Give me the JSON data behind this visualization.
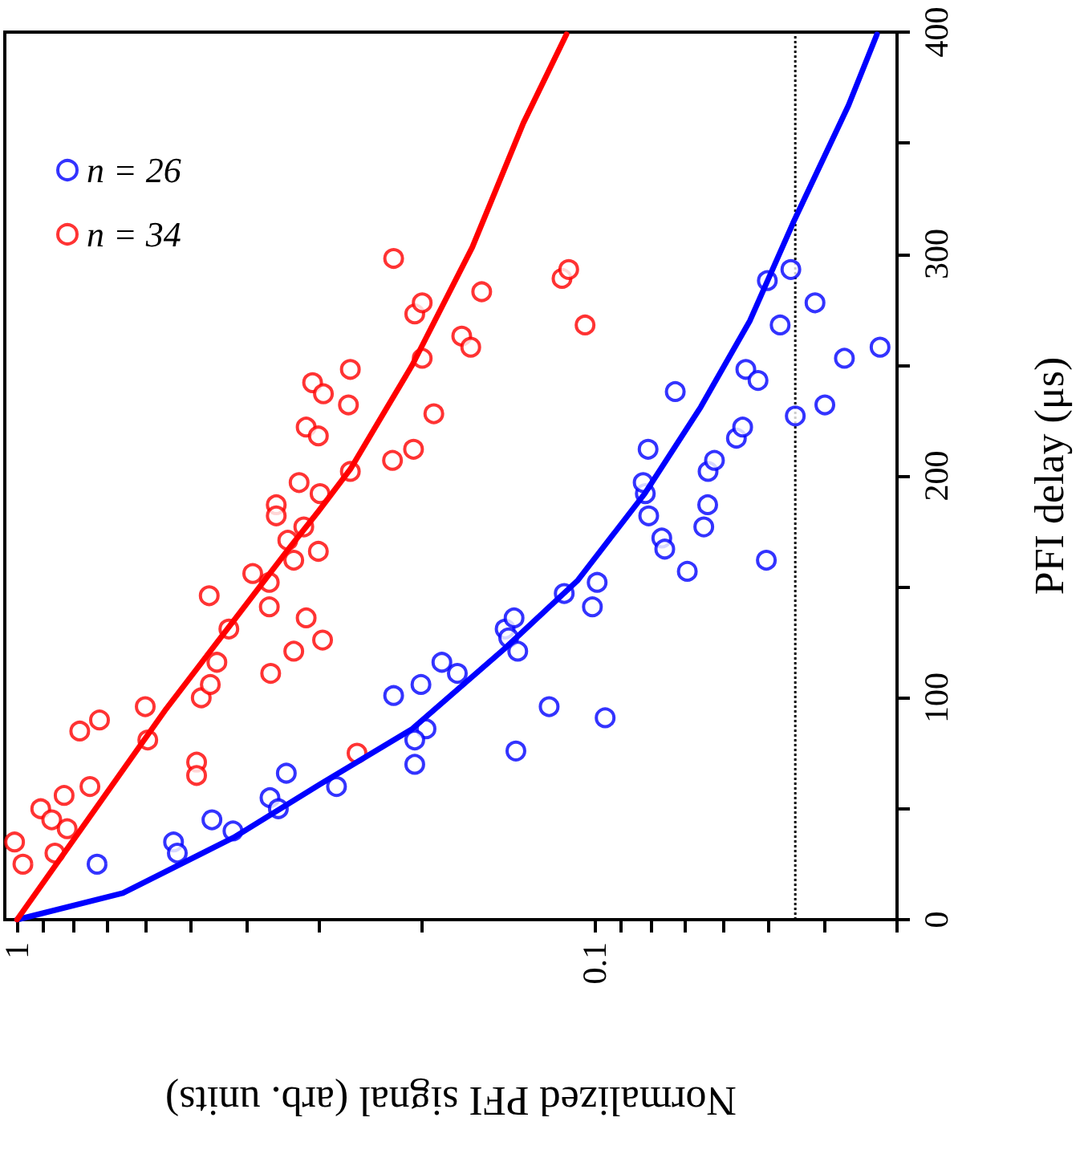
{
  "chart_data": {
    "type": "scatter",
    "xlabel": "Normalized PFI signal (arb. units)",
    "ylabel": "PFI delay (μs)",
    "log": "x",
    "grid": false,
    "legend": "top left",
    "marker": "circle",
    "xlim": [
      1.05,
      0.03
    ],
    "xticks": [
      1,
      {
        "value": 0.9,
        "label": null
      },
      {
        "value": 0.8,
        "label": null
      },
      {
        "value": 0.7,
        "label": null
      },
      {
        "value": 0.6,
        "label": null
      },
      {
        "value": 0.5,
        "label": null
      },
      {
        "value": 0.4,
        "label": null
      },
      {
        "value": 0.3,
        "label": null
      },
      {
        "value": 0.2,
        "label": null
      },
      0.1,
      {
        "value": 0.09,
        "label": null
      },
      {
        "value": 0.08,
        "label": null
      },
      {
        "value": 0.07,
        "label": null
      },
      {
        "value": 0.06,
        "label": null
      },
      {
        "value": 0.05,
        "label": null
      },
      {
        "value": 0.04,
        "label": null
      },
      {
        "value": 0.03,
        "label": null
      }
    ],
    "ylim": [
      0,
      400
    ],
    "yticks": [
      0,
      {
        "value": 50,
        "label": null
      },
      100,
      {
        "value": 150,
        "label": null
      },
      200,
      {
        "value": 250,
        "label": null
      },
      300,
      {
        "value": 350,
        "label": null
      },
      400
    ],
    "ref_lines": [
      {
        "axis": "x",
        "value": 0.045,
        "color": "#000000",
        "line_style": "dotted"
      }
    ],
    "series": [
      {
        "name": "n = 26",
        "color": "#0000ff",
        "values": [
          25,
          35,
          30,
          45,
          40,
          55,
          50,
          66,
          60,
          101,
          106,
          86,
          81,
          70,
          116,
          111,
          131,
          127,
          136,
          121,
          76,
          96,
          147,
          141,
          152,
          91,
          192,
          197,
          182,
          212,
          172,
          167,
          157,
          238,
          177,
          187,
          202,
          207,
          217,
          222,
          248,
          243,
          162,
          288,
          293,
          268,
          227,
          278,
          232,
          253,
          258
        ],
        "x": [
          0.727,
          0.536,
          0.528,
          0.46,
          0.423,
          0.365,
          0.353,
          0.342,
          0.28,
          0.223,
          0.2,
          0.196,
          0.205,
          0.205,
          0.184,
          0.173,
          0.143,
          0.141,
          0.138,
          0.136,
          0.137,
          0.12,
          0.113,
          0.101,
          0.0991,
          0.096,
          0.0818,
          0.0825,
          0.0807,
          0.0809,
          0.0766,
          0.0757,
          0.0692,
          0.0726,
          0.0648,
          0.0638,
          0.0637,
          0.0621,
          0.0569,
          0.0555,
          0.0548,
          0.0522,
          0.0505,
          0.0503,
          0.0458,
          0.0478,
          0.045,
          0.0416,
          0.04,
          0.037,
          0.0321
        ]
      },
      {
        "name": "n = 34",
        "color": "#ff0000",
        "values": [
          35,
          25,
          50,
          45,
          56,
          41,
          30,
          85,
          90,
          60,
          96,
          81,
          71,
          65,
          100,
          106,
          116,
          131,
          146,
          156,
          152,
          141,
          111,
          121,
          136,
          162,
          171,
          177,
          187,
          182,
          197,
          222,
          242,
          237,
          218,
          192,
          166,
          126,
          248,
          232,
          202,
          298,
          273,
          278,
          253,
          228,
          207,
          212,
          263,
          258,
          283,
          289,
          293,
          268,
          75
        ],
        "x": [
          1.01,
          0.977,
          0.91,
          0.871,
          0.829,
          0.819,
          0.86,
          0.779,
          0.72,
          0.748,
          0.6,
          0.594,
          0.489,
          0.489,
          0.48,
          0.463,
          0.451,
          0.43,
          0.465,
          0.391,
          0.366,
          0.366,
          0.364,
          0.332,
          0.316,
          0.332,
          0.34,
          0.319,
          0.356,
          0.356,
          0.325,
          0.316,
          0.308,
          0.295,
          0.301,
          0.299,
          0.301,
          0.296,
          0.265,
          0.267,
          0.265,
          0.223,
          0.205,
          0.199,
          0.199,
          0.19,
          0.224,
          0.206,
          0.17,
          0.164,
          0.157,
          0.114,
          0.111,
          0.104,
          0.258
        ]
      },
      {
        "type": "line",
        "color": "#0000ff",
        "marker": "none",
        "line_style": "solid",
        "values": [
          0,
          12,
          37,
          61,
          86,
          122,
          153,
          192,
          231,
          270,
          314,
          367,
          399
        ],
        "x": [
          1,
          0.656,
          0.422,
          0.299,
          0.207,
          0.1435,
          0.107,
          0.082,
          0.0656,
          0.0539,
          0.0454,
          0.0364,
          0.0325
        ]
      },
      {
        "type": "line",
        "color": "#ff0000",
        "marker": "none",
        "line_style": "solid",
        "values": [
          0,
          95,
          167,
          184,
          203,
          250,
          303,
          359,
          399
        ],
        "x": [
          1,
          0.552,
          0.339,
          0.301,
          0.265,
          0.207,
          0.163,
          0.133,
          0.112
        ]
      }
    ]
  }
}
